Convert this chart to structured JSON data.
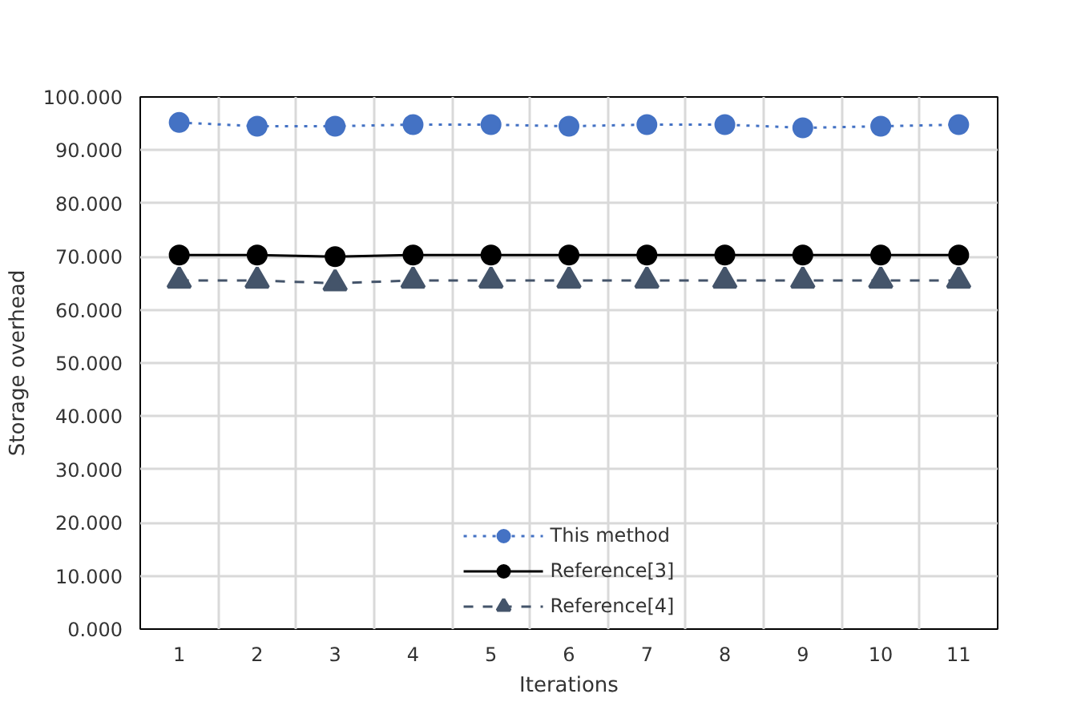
{
  "chart_data": {
    "type": "line",
    "xlabel": "Iterations",
    "ylabel": "Storage overhead",
    "categories": [
      "1",
      "2",
      "3",
      "4",
      "5",
      "6",
      "7",
      "8",
      "9",
      "10",
      "11"
    ],
    "ylim": [
      0,
      100
    ],
    "yticks": [
      {
        "value": 0,
        "label": "0.000"
      },
      {
        "value": 10,
        "label": "10.000"
      },
      {
        "value": 20,
        "label": "20.000"
      },
      {
        "value": 30,
        "label": "30.000"
      },
      {
        "value": 40,
        "label": "40.000"
      },
      {
        "value": 50,
        "label": "50.000"
      },
      {
        "value": 60,
        "label": "60.000"
      },
      {
        "value": 70,
        "label": "70.000"
      },
      {
        "value": 80,
        "label": "80.000"
      },
      {
        "value": 90,
        "label": "90.000"
      },
      {
        "value": 100,
        "label": "100.000"
      }
    ],
    "grid": true,
    "legend": "bottom",
    "series": [
      {
        "name": "This method",
        "color": "#4472c4",
        "marker": "circle",
        "line_style": "dotted",
        "values": [
          95.2,
          94.5,
          94.5,
          94.8,
          94.8,
          94.5,
          94.8,
          94.8,
          94.2,
          94.5,
          94.8
        ]
      },
      {
        "name": "Reference[3]",
        "color": "#000000",
        "marker": "circle",
        "line_style": "solid",
        "values": [
          70.3,
          70.3,
          70.0,
          70.3,
          70.3,
          70.3,
          70.3,
          70.3,
          70.3,
          70.3,
          70.3
        ]
      },
      {
        "name": "Reference[4]",
        "color": "#44546a",
        "marker": "triangle",
        "line_style": "dashed",
        "values": [
          65.5,
          65.5,
          65.0,
          65.5,
          65.5,
          65.5,
          65.5,
          65.5,
          65.5,
          65.5,
          65.5
        ]
      }
    ]
  }
}
